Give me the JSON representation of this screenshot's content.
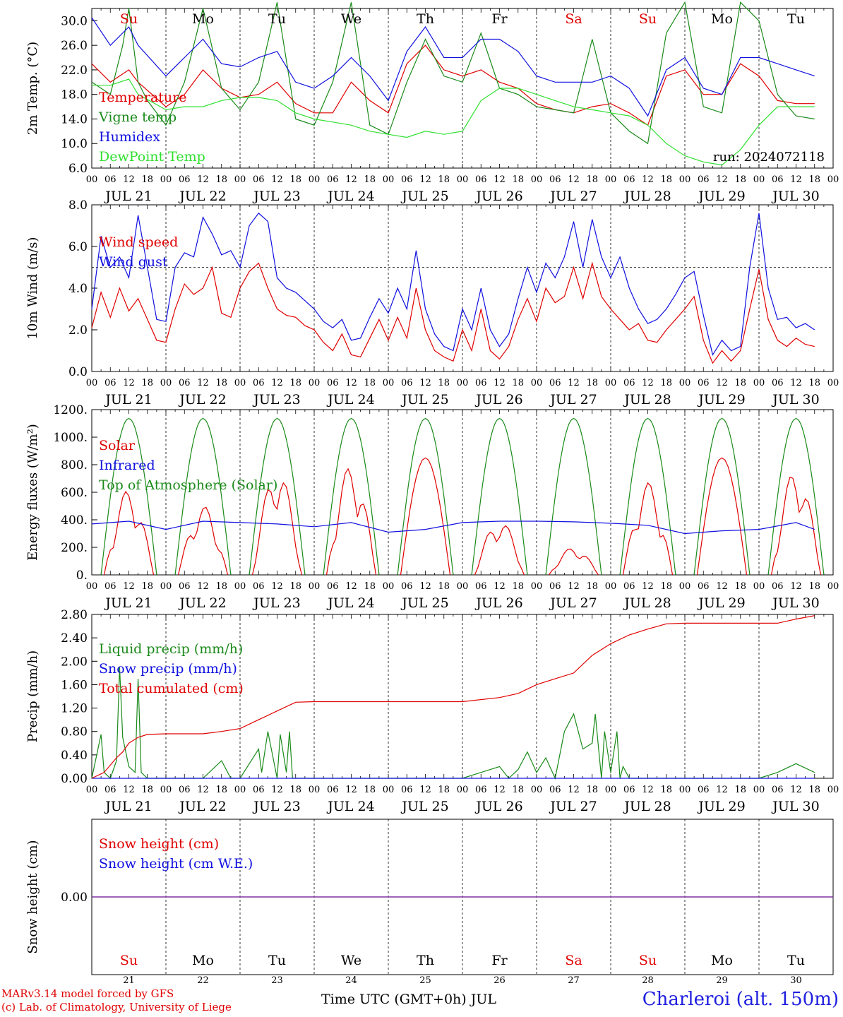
{
  "days": [
    "21",
    "22",
    "23",
    "24",
    "25",
    "26",
    "27",
    "28",
    "29",
    "30"
  ],
  "date_labels": [
    "JUL 21",
    "JUL 22",
    "JUL 23",
    "JUL 24",
    "JUL 25",
    "JUL 26",
    "JUL 27",
    "JUL 28",
    "JUL 29",
    "JUL 30"
  ],
  "weekdays": [
    "Su",
    "Mo",
    "Tu",
    "We",
    "Th",
    "Fr",
    "Sa",
    "Su",
    "Mo",
    "Tu"
  ],
  "weekday_colors": [
    "#e00000",
    "#000000",
    "#000000",
    "#000000",
    "#000000",
    "#000000",
    "#e00000",
    "#e00000",
    "#000000",
    "#000000"
  ],
  "hour_labels": [
    "00",
    "06",
    "12",
    "18"
  ],
  "run_label": "run: 2024072118",
  "footer": {
    "model_line": "MARv3.14 model forced by GFS",
    "credit_line": "(c) Lab. of Climatology, University of Liege",
    "time_axis_label": "Time UTC (GMT+0h) JUL",
    "station": "Charleroi (alt. 150m)"
  },
  "colors": {
    "red": "#e00000",
    "green": "#1a8a1a",
    "blue": "#1010e0",
    "lightgreen": "#30e030",
    "purple": "#8030a0"
  },
  "chart_data": [
    {
      "type": "line",
      "ylabel": "2m Temp. (°C)",
      "ylim": [
        6,
        32
      ],
      "yticks": [
        "30.0",
        "26.0",
        "22.0",
        "18.0",
        "14.0",
        "10.0",
        "6.0"
      ],
      "grid": "vertical dashed at midnights",
      "series": [
        {
          "name": "Temperature",
          "color": "#e00000",
          "x_hours": [
            0,
            6,
            12,
            15,
            24,
            30,
            36,
            42,
            48,
            54,
            60,
            66,
            72,
            78,
            84,
            90,
            96,
            102,
            108,
            114,
            120,
            126,
            132,
            138,
            144,
            150,
            156,
            162,
            168,
            174,
            180,
            186,
            192,
            198,
            204,
            210,
            216,
            222,
            228,
            234
          ],
          "values": [
            23,
            20,
            22,
            20,
            16,
            18,
            22,
            19,
            17.5,
            18,
            20,
            16.5,
            15,
            15,
            20,
            17,
            15,
            23,
            26,
            22,
            21,
            22,
            20,
            19,
            16.5,
            15.5,
            15,
            16,
            16.5,
            15,
            13,
            21,
            22,
            18,
            18,
            23,
            21,
            17,
            16.5,
            16.5
          ]
        },
        {
          "name": "Vigne temp",
          "color": "#1a8a1a",
          "x_hours": [
            0,
            6,
            10,
            12,
            15,
            18,
            24,
            30,
            36,
            42,
            48,
            54,
            60,
            66,
            72,
            78,
            84,
            90,
            96,
            102,
            108,
            114,
            120,
            126,
            132,
            138,
            144,
            150,
            156,
            162,
            168,
            174,
            180,
            186,
            192,
            198,
            204,
            210,
            216,
            222,
            228,
            234
          ],
          "values": [
            20,
            18,
            26,
            32,
            20,
            17,
            13,
            20,
            32,
            19,
            15.5,
            20,
            33,
            14,
            13,
            20,
            33,
            13,
            11.5,
            20,
            27,
            21,
            20,
            28,
            19,
            18,
            16,
            15.5,
            15,
            27,
            15,
            12,
            10,
            28,
            33,
            16,
            15,
            33,
            30,
            18,
            14.5,
            14
          ]
        },
        {
          "name": "Humidex",
          "color": "#1010e0",
          "x_hours": [
            0,
            6,
            12,
            15,
            24,
            30,
            36,
            42,
            48,
            54,
            60,
            66,
            72,
            78,
            84,
            90,
            96,
            102,
            108,
            114,
            120,
            126,
            132,
            138,
            144,
            150,
            156,
            162,
            168,
            174,
            180,
            186,
            192,
            198,
            204,
            210,
            216,
            222,
            228,
            234
          ],
          "values": [
            30.5,
            26,
            29,
            26,
            21,
            24,
            27,
            23,
            22.5,
            24,
            25,
            20,
            19,
            21,
            24,
            21,
            17,
            25,
            29,
            24,
            24,
            27,
            27,
            25,
            21,
            20,
            20,
            20,
            21,
            19,
            14.5,
            22,
            24,
            19,
            18,
            24,
            24,
            23,
            22,
            21
          ]
        },
        {
          "name": "DewPoint Temp",
          "color": "#30e030",
          "x_hours": [
            0,
            6,
            12,
            15,
            24,
            30,
            36,
            42,
            48,
            54,
            60,
            66,
            72,
            78,
            84,
            90,
            96,
            102,
            108,
            114,
            120,
            126,
            132,
            138,
            144,
            150,
            156,
            162,
            168,
            174,
            180,
            186,
            192,
            198,
            204,
            210,
            216,
            222,
            228,
            234
          ],
          "values": [
            19.5,
            19.5,
            20.5,
            18,
            15.5,
            16,
            16,
            17,
            17.5,
            17.5,
            17,
            15,
            14,
            13.5,
            13,
            12,
            11.5,
            11,
            12,
            11.5,
            12,
            17,
            19,
            19,
            18,
            17,
            16,
            15.5,
            15,
            14.5,
            13,
            10,
            8,
            7,
            6.5,
            9,
            13,
            16,
            16,
            16
          ]
        }
      ]
    },
    {
      "type": "line",
      "ylabel": "10m Wind (m/s)",
      "ylim": [
        0,
        8
      ],
      "yticks": [
        "8.0",
        "6.0",
        "4.0",
        "2.0",
        "0.0"
      ],
      "reference_line": 5,
      "series": [
        {
          "name": "Wind speed",
          "color": "#e00000",
          "x_hours": [
            0,
            3,
            6,
            9,
            12,
            15,
            18,
            21,
            24,
            27,
            30,
            33,
            36,
            39,
            42,
            45,
            48,
            51,
            54,
            57,
            60,
            63,
            66,
            69,
            72,
            75,
            78,
            81,
            84,
            87,
            90,
            93,
            96,
            99,
            102,
            105,
            108,
            111,
            114,
            117,
            120,
            123,
            126,
            129,
            132,
            135,
            138,
            141,
            144,
            147,
            150,
            153,
            156,
            159,
            162,
            165,
            168,
            171,
            174,
            177,
            180,
            183,
            186,
            189,
            192,
            195,
            198,
            201,
            204,
            207,
            210,
            213,
            216,
            219,
            222,
            225,
            228,
            231,
            234
          ],
          "values": [
            2.1,
            3.8,
            2.6,
            4.0,
            2.9,
            3.5,
            2.5,
            1.5,
            1.4,
            3.0,
            4.2,
            3.7,
            4.0,
            5.0,
            2.8,
            2.6,
            4.0,
            4.8,
            5.2,
            4.0,
            3.0,
            2.7,
            2.6,
            2.2,
            2.0,
            1.4,
            1.0,
            1.8,
            0.8,
            0.7,
            1.6,
            2.5,
            1.5,
            2.6,
            1.6,
            4.0,
            2.0,
            1.0,
            0.7,
            0.5,
            2.0,
            1.0,
            3.0,
            1.0,
            0.6,
            1.2,
            2.5,
            3.5,
            2.4,
            4.0,
            3.3,
            3.6,
            5.0,
            3.5,
            5.2,
            3.6,
            3.0,
            2.5,
            2.0,
            2.3,
            1.5,
            1.4,
            2.0,
            2.5,
            3.0,
            3.6,
            1.5,
            0.4,
            1.0,
            0.5,
            1.0,
            3.0,
            4.9,
            2.5,
            1.5,
            1.2,
            1.6,
            1.3,
            1.2
          ]
        },
        {
          "name": "Wind gust",
          "color": "#1010e0",
          "x_hours": [
            0,
            3,
            6,
            9,
            12,
            15,
            18,
            21,
            24,
            27,
            30,
            33,
            36,
            39,
            42,
            45,
            48,
            51,
            54,
            57,
            60,
            63,
            66,
            69,
            72,
            75,
            78,
            81,
            84,
            87,
            90,
            93,
            96,
            99,
            102,
            105,
            108,
            111,
            114,
            117,
            120,
            123,
            126,
            129,
            132,
            135,
            138,
            141,
            144,
            147,
            150,
            153,
            156,
            159,
            162,
            165,
            168,
            171,
            174,
            177,
            180,
            183,
            186,
            189,
            192,
            195,
            198,
            201,
            204,
            207,
            210,
            213,
            216,
            219,
            222,
            225,
            228,
            231,
            234
          ],
          "values": [
            3.0,
            6.5,
            5.0,
            5.5,
            4.5,
            7.5,
            5.0,
            2.5,
            2.4,
            5.0,
            5.7,
            5.5,
            7.4,
            6.6,
            5.6,
            5.8,
            5.0,
            7.0,
            7.6,
            7.2,
            4.5,
            4.0,
            3.8,
            3.4,
            3.0,
            2.4,
            2.1,
            2.5,
            1.5,
            1.6,
            2.6,
            3.5,
            2.8,
            4.0,
            3.0,
            5.8,
            3.0,
            1.8,
            1.2,
            1.0,
            3.0,
            2.0,
            4.0,
            2.0,
            1.2,
            1.8,
            3.5,
            5.0,
            3.8,
            5.2,
            4.5,
            5.5,
            7.2,
            5.0,
            7.3,
            5.5,
            4.5,
            5.5,
            4.0,
            3.0,
            2.3,
            2.5,
            3.0,
            3.7,
            4.5,
            4.8,
            2.7,
            0.8,
            1.5,
            1.0,
            1.2,
            5.0,
            7.6,
            4.0,
            2.5,
            2.6,
            2.1,
            2.3,
            2.0
          ]
        }
      ]
    },
    {
      "type": "line",
      "ylabel": "Energy fluxes (W/m²)",
      "ylim": [
        0,
        1200
      ],
      "yticks": [
        "1200.",
        "1000.",
        "800.",
        "600.",
        "400.",
        "200.",
        "0."
      ],
      "series": [
        {
          "name": "Solar",
          "color": "#e00000",
          "peaks": [
            620,
            500,
            770,
            800,
            850,
            400,
            200,
            670,
            850,
            770
          ]
        },
        {
          "name": "Infrared",
          "color": "#1010e0",
          "x_hours": [
            0,
            12,
            24,
            36,
            48,
            60,
            72,
            84,
            96,
            108,
            120,
            132,
            144,
            156,
            168,
            180,
            192,
            204,
            216,
            228,
            234
          ],
          "values": [
            370,
            390,
            330,
            390,
            380,
            370,
            350,
            380,
            310,
            330,
            380,
            390,
            390,
            385,
            375,
            360,
            300,
            320,
            330,
            380,
            330
          ]
        },
        {
          "name": "Top of Atmosphere (Solar)",
          "color": "#1a8a1a",
          "peak": 1135
        }
      ]
    },
    {
      "type": "line",
      "ylabel": "Precip (mm/h)",
      "ylim": [
        0,
        2.8
      ],
      "yticks": [
        "2.80",
        "2.40",
        "2.00",
        "1.60",
        "1.20",
        "0.80",
        "0.40",
        "0.00"
      ],
      "series": [
        {
          "name": "Liquid precip (mm/h)",
          "color": "#1a8a1a",
          "x_hours": [
            0,
            3,
            4,
            6,
            8,
            9,
            10,
            12,
            14,
            15,
            16,
            18,
            24,
            36,
            42,
            45,
            48,
            54,
            55,
            57,
            60,
            61,
            63,
            64,
            65,
            66,
            72,
            84,
            96,
            108,
            120,
            126,
            132,
            135,
            138,
            141,
            144,
            147,
            150,
            153,
            156,
            159,
            162,
            163,
            165,
            166,
            168,
            170,
            171,
            172,
            174,
            180,
            186,
            192,
            204,
            216,
            222,
            228,
            234
          ],
          "values": [
            0,
            0.75,
            0.1,
            0,
            0.3,
            1.9,
            0.7,
            0.2,
            0.1,
            1.7,
            0.1,
            0,
            0,
            0,
            0.3,
            0,
            0,
            0.5,
            0.1,
            0.8,
            0,
            0.75,
            0.1,
            0.8,
            0,
            0,
            0,
            0,
            0,
            0,
            0,
            0.1,
            0.2,
            0,
            0.15,
            0.45,
            0.1,
            0.35,
            0,
            0.8,
            1.1,
            0.5,
            0.6,
            1.1,
            0,
            0.8,
            0.1,
            0.8,
            0,
            0.2,
            0,
            0,
            0,
            0,
            0,
            0,
            0.1,
            0.25,
            0.1
          ]
        },
        {
          "name": "Snow precip (mm/h)",
          "color": "#1010e0",
          "x_hours": [
            0,
            234
          ],
          "values": [
            0,
            0
          ]
        },
        {
          "name": "Total cumulated (cm)",
          "color": "#e00000",
          "x_hours": [
            0,
            4,
            8,
            10,
            12,
            15,
            18,
            24,
            36,
            42,
            48,
            54,
            60,
            66,
            72,
            84,
            96,
            108,
            120,
            132,
            138,
            144,
            150,
            156,
            162,
            168,
            170,
            174,
            180,
            186,
            192,
            204,
            216,
            222,
            228,
            234
          ],
          "values": [
            0,
            0.1,
            0.35,
            0.45,
            0.6,
            0.7,
            0.75,
            0.76,
            0.76,
            0.8,
            0.85,
            1.0,
            1.15,
            1.3,
            1.31,
            1.31,
            1.31,
            1.31,
            1.31,
            1.38,
            1.45,
            1.6,
            1.7,
            1.8,
            2.1,
            2.3,
            2.35,
            2.45,
            2.55,
            2.64,
            2.65,
            2.65,
            2.65,
            2.65,
            2.72,
            2.78
          ]
        }
      ]
    },
    {
      "type": "line",
      "ylabel": "Snow height (cm)",
      "yticks": [
        "0.00"
      ],
      "series": [
        {
          "name": "Snow height (cm)",
          "color": "#e00000",
          "x_hours": [
            0,
            234
          ],
          "values": [
            0,
            0
          ]
        },
        {
          "name": "Snow height (cm W.E.)",
          "color": "#1010e0",
          "x_hours": [
            0,
            234
          ],
          "values": [
            0,
            0
          ]
        }
      ]
    }
  ]
}
